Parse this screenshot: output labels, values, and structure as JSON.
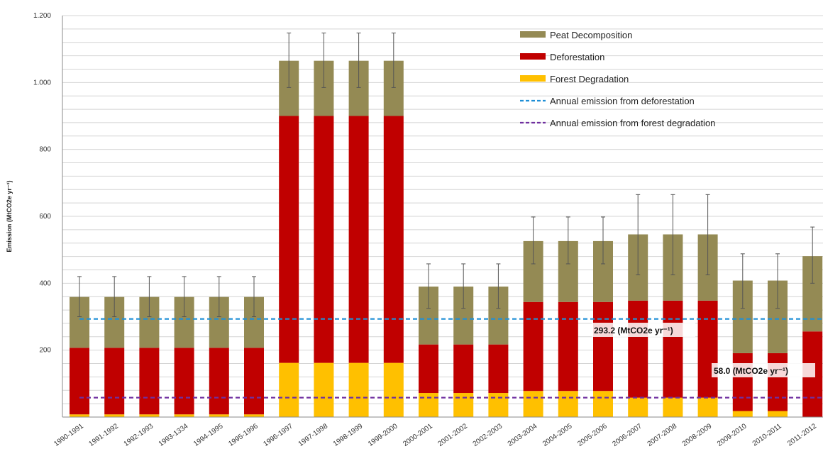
{
  "chart_data": {
    "type": "bar",
    "stacked": true,
    "ylabel": "Emission (MtCO2e yr⁻¹)",
    "ylim": [
      0,
      1200
    ],
    "yticks": [
      0,
      200,
      400,
      600,
      800,
      1000,
      1200
    ],
    "ytick_labels": [
      "",
      "200",
      "400",
      "600",
      "800",
      "1.000",
      "1.200"
    ],
    "grid": true,
    "legend_position": "top-right",
    "categories": [
      "1990-1991",
      "1991-1992",
      "1992-1993",
      "1993-1334",
      "1994-1995",
      "1995-1996",
      "1996-1997",
      "1997-1998",
      "1998-1999",
      "1999-2000",
      "2000-2001",
      "2001-2002",
      "2002-2003",
      "2003-2004",
      "2004-2005",
      "2005-2006",
      "2006-2007",
      "2007-2008",
      "2008-2009",
      "2009-2010",
      "2010-2011",
      "2011-2012"
    ],
    "series": [
      {
        "name": "Forest Degradation",
        "color": "#ffc000",
        "values": [
          8,
          8,
          8,
          8,
          8,
          8,
          162,
          162,
          162,
          162,
          72,
          72,
          72,
          78,
          78,
          78,
          58,
          58,
          58,
          18,
          18,
          0
        ]
      },
      {
        "name": "Deforestation",
        "color": "#c00000",
        "values": [
          199,
          199,
          199,
          199,
          199,
          199,
          738,
          738,
          738,
          738,
          145,
          145,
          145,
          266,
          266,
          266,
          290,
          290,
          290,
          173,
          173,
          256
        ]
      },
      {
        "name": "Peat Decomposition",
        "color": "#948a54",
        "values": [
          152,
          152,
          152,
          152,
          152,
          152,
          165,
          165,
          165,
          165,
          173,
          173,
          173,
          182,
          182,
          182,
          198,
          198,
          198,
          217,
          217,
          225
        ]
      }
    ],
    "error_bars": {
      "upper": [
        420,
        420,
        420,
        420,
        420,
        420,
        1148,
        1148,
        1148,
        1148,
        458,
        458,
        458,
        598,
        598,
        598,
        665,
        665,
        665,
        488,
        488,
        568
      ],
      "lower": [
        300,
        300,
        300,
        300,
        300,
        300,
        985,
        985,
        985,
        985,
        325,
        325,
        325,
        458,
        458,
        458,
        425,
        425,
        425,
        325,
        325,
        400
      ]
    },
    "reference_lines": [
      {
        "name": "Annual emission from deforestation",
        "value": 293.2,
        "color": "#1f8fd6",
        "label": "293.2 (MtCO2e yr⁻¹)"
      },
      {
        "name": "Annual emission from forest degradation",
        "value": 58.0,
        "color": "#7030a0",
        "label": "58.0 (MtCO2e yr⁻¹)"
      }
    ],
    "legend": [
      {
        "label": "Peat Decomposition",
        "kind": "box",
        "color": "#948a54"
      },
      {
        "label": "Deforestation",
        "kind": "box",
        "color": "#c00000"
      },
      {
        "label": "Forest Degradation",
        "kind": "box",
        "color": "#ffc000"
      },
      {
        "label": "Annual emission from deforestation",
        "kind": "dash",
        "color": "#1f8fd6"
      },
      {
        "label": "Annual emission from forest degradation",
        "kind": "dash",
        "color": "#7030a0"
      }
    ]
  }
}
